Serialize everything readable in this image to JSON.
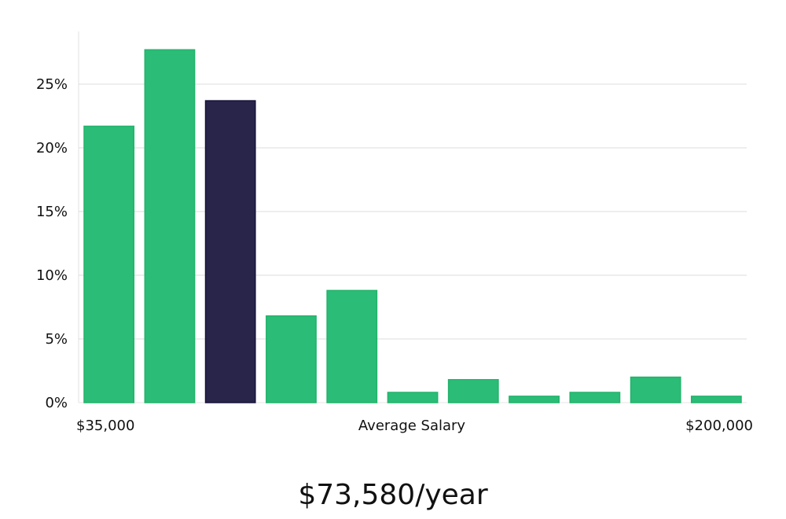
{
  "chart_data": {
    "type": "bar",
    "categories": [
      "$35,000",
      "",
      "",
      "",
      "",
      "",
      "",
      "",
      "",
      "",
      "$200,000"
    ],
    "values": [
      21.7,
      27.7,
      23.7,
      6.8,
      8.8,
      0.8,
      1.8,
      0.5,
      0.8,
      2.0,
      0.5
    ],
    "highlight_index": 2,
    "colors": {
      "bar": "#2bbd77",
      "bar_border": "#22b36b",
      "highlight": "#28244a",
      "highlight_border": "#16133a",
      "grid": "#dcdcdc"
    },
    "ylim": [
      0,
      30
    ],
    "yticks": [
      0,
      5,
      10,
      15,
      20,
      25
    ],
    "ytick_labels": [
      "0%",
      "5%",
      "10%",
      "15%",
      "20%",
      "25%"
    ],
    "xlabel_left": "$35,000",
    "xlabel_center": "Average Salary",
    "xlabel_right": "$200,000",
    "grid": true
  },
  "footer": {
    "salary": "$73,580/year"
  }
}
